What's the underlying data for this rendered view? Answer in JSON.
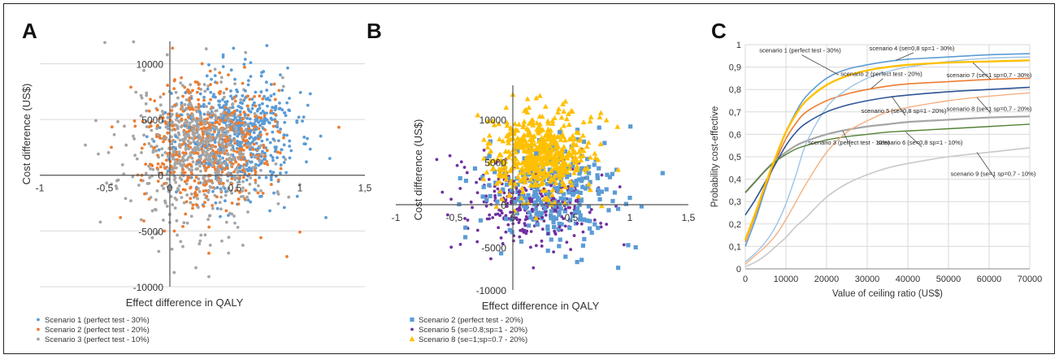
{
  "figure": {
    "panel_letters": [
      "A",
      "B",
      "C"
    ]
  },
  "chart_data": [
    {
      "panel": "A",
      "type": "scatter",
      "xlabel": "Effect difference in QALY",
      "ylabel": "Cost difference (US$)",
      "xlim": [
        -1,
        1.5
      ],
      "ylim": [
        -10000,
        12000
      ],
      "x_ticks": [
        -1,
        -0.5,
        0,
        0.5,
        1,
        1.5
      ],
      "x_tick_labels": [
        "-1",
        "-0,5",
        "0",
        "0,5",
        "1",
        "1,5"
      ],
      "y_ticks": [
        -10000,
        -5000,
        0,
        5000,
        10000
      ],
      "y_tick_labels": [
        "-10000",
        "-5000",
        "0",
        "5000",
        "10000"
      ],
      "grid": true,
      "legend_position": "bottom-left",
      "series": [
        {
          "name": "Scenario 1 (perfect test - 30%)",
          "color": "#5b9bd5",
          "marker": "circle",
          "points": [
            [
              1.23,
              1500
            ],
            [
              1.2,
              -3800
            ],
            [
              1.16,
              3500
            ],
            [
              1.08,
              7300
            ],
            [
              1.05,
              1200
            ],
            [
              0.98,
              -1900
            ],
            [
              0.92,
              5800
            ],
            [
              0.88,
              -2900
            ],
            [
              0.85,
              9000
            ],
            [
              0.8,
              -1600
            ],
            [
              0.75,
              6200
            ],
            [
              0.72,
              9300
            ],
            [
              0.68,
              2400
            ],
            [
              0.62,
              -2400
            ],
            [
              0.58,
              10400
            ],
            [
              0.55,
              4500
            ],
            [
              0.5,
              8600
            ],
            [
              0.45,
              -3600
            ],
            [
              0.41,
              10800
            ],
            [
              0.38,
              6300
            ],
            [
              0.3,
              9900
            ],
            [
              0.22,
              1200
            ],
            [
              0.15,
              4300
            ],
            [
              0.05,
              -1500
            ],
            [
              0.92,
              2600
            ],
            [
              0.78,
              -400
            ],
            [
              0.66,
              4100
            ],
            [
              0.47,
              3000
            ],
            [
              0.32,
              5200
            ],
            [
              0.12,
              7400
            ]
          ]
        },
        {
          "name": "Scenario 2 (perfect test - 20%)",
          "color": "#ed7d31",
          "marker": "circle",
          "points": [
            [
              1.3,
              4300
            ],
            [
              1.0,
              -5100
            ],
            [
              0.9,
              -7300
            ],
            [
              0.7,
              -5600
            ],
            [
              0.3,
              -7000
            ],
            [
              0.02,
              11400
            ],
            [
              -0.38,
              -3800
            ],
            [
              -0.15,
              6800
            ],
            [
              0.6,
              7100
            ],
            [
              -0.2,
              -4100
            ],
            [
              0.84,
              7600
            ],
            [
              -0.45,
              2500
            ],
            [
              0.1,
              -4600
            ],
            [
              0.45,
              9000
            ],
            [
              -0.3,
              7900
            ],
            [
              0.7,
              3600
            ],
            [
              0.2,
              2000
            ],
            [
              0.35,
              4700
            ],
            [
              -0.05,
              3000
            ],
            [
              0.55,
              1400
            ]
          ]
        },
        {
          "name": "Scenario 3 (perfect test - 10%)",
          "color": "#a5a5a5",
          "marker": "circle",
          "points": [
            [
              -0.65,
              2700
            ],
            [
              -0.55,
              1900
            ],
            [
              -0.5,
              11900
            ],
            [
              -0.45,
              -800
            ],
            [
              -0.4,
              4800
            ],
            [
              -0.3,
              -2300
            ],
            [
              -0.2,
              9400
            ],
            [
              -0.1,
              -5200
            ],
            [
              0.0,
              -3500
            ],
            [
              0.1,
              -6400
            ],
            [
              0.2,
              -8300
            ],
            [
              0.3,
              -9100
            ],
            [
              0.4,
              -5900
            ],
            [
              0.5,
              -4300
            ],
            [
              0.6,
              -3300
            ],
            [
              0.7,
              -1400
            ],
            [
              0.2,
              6100
            ],
            [
              0.1,
              3200
            ],
            [
              0.3,
              1800
            ],
            [
              0.4,
              4100
            ],
            [
              -0.1,
              2600
            ],
            [
              0.0,
              600
            ],
            [
              0.25,
              2900
            ],
            [
              -0.35,
              4400
            ]
          ]
        }
      ]
    },
    {
      "panel": "B",
      "type": "scatter",
      "xlabel": "Effect difference in QALY",
      "ylabel": "Cost difference (US$)",
      "xlim": [
        -1,
        1.5
      ],
      "ylim": [
        -10000,
        14000
      ],
      "x_ticks": [
        -1,
        -0.5,
        0,
        0.5,
        1,
        1.5
      ],
      "x_tick_labels": [
        "-1",
        "-0,5",
        "0",
        "0,5",
        "1",
        "1,5"
      ],
      "y_ticks": [
        -10000,
        -5000,
        0,
        5000,
        10000
      ],
      "y_tick_labels": [
        "-10000",
        "-5000",
        "0",
        "5000",
        "10000"
      ],
      "grid": false,
      "legend_position": "bottom-left",
      "series": [
        {
          "name": "Scenario 2 (perfect test - 20%)",
          "color": "#5b9bd5",
          "marker": "square",
          "points": [
            [
              1.28,
              3700
            ],
            [
              1.1,
              -200
            ],
            [
              1.05,
              -5000
            ],
            [
              1.0,
              800
            ],
            [
              0.9,
              -7400
            ],
            [
              0.85,
              3600
            ],
            [
              0.7,
              -2300
            ],
            [
              0.6,
              -4800
            ],
            [
              0.45,
              -6100
            ],
            [
              0.3,
              -5400
            ],
            [
              -0.1,
              -5700
            ],
            [
              -0.45,
              3100
            ],
            [
              -0.4,
              2800
            ],
            [
              0.2,
              6000
            ],
            [
              0.55,
              1500
            ],
            [
              0.8,
              1800
            ],
            [
              0.15,
              -1500
            ],
            [
              -0.2,
              5700
            ],
            [
              0.4,
              8500
            ],
            [
              0.65,
              3700
            ]
          ]
        },
        {
          "name": "Scenario 5 (se=0.8;sp=1 - 20%)",
          "color": "#7030a0",
          "marker": "circle",
          "points": [
            [
              -0.65,
              5300
            ],
            [
              -0.45,
              1900
            ],
            [
              -0.3,
              -3000
            ],
            [
              -0.2,
              -1200
            ],
            [
              -0.1,
              -3900
            ],
            [
              0.0,
              -900
            ],
            [
              0.1,
              -2200
            ],
            [
              0.2,
              -4800
            ],
            [
              0.3,
              -3400
            ],
            [
              0.4,
              -2600
            ],
            [
              0.5,
              -1000
            ],
            [
              0.6,
              -3200
            ],
            [
              0.7,
              -1800
            ],
            [
              0.8,
              -2300
            ],
            [
              0.95,
              -4700
            ],
            [
              0.05,
              1500
            ],
            [
              -0.05,
              -200
            ],
            [
              0.15,
              400
            ],
            [
              0.25,
              -1500
            ],
            [
              0.35,
              700
            ],
            [
              0.45,
              -500
            ],
            [
              0.55,
              -2200
            ],
            [
              0.12,
              -3100
            ],
            [
              -0.15,
              800
            ]
          ]
        },
        {
          "name": "Scenario 8 (se=1;sp=0.7 - 20%)",
          "color": "#ffc000",
          "marker": "triangle",
          "points": [
            [
              0.0,
              12900
            ],
            [
              -0.3,
              10500
            ],
            [
              0.2,
              12500
            ],
            [
              0.45,
              12100
            ],
            [
              0.5,
              11000
            ],
            [
              0.8,
              9900
            ],
            [
              0.9,
              4100
            ],
            [
              -0.2,
              8100
            ],
            [
              0.1,
              11000
            ],
            [
              0.3,
              9800
            ],
            [
              0.6,
              8100
            ],
            [
              0.7,
              6000
            ],
            [
              -0.1,
              5200
            ],
            [
              0.05,
              6700
            ],
            [
              0.15,
              4300
            ],
            [
              0.25,
              7200
            ],
            [
              0.35,
              5600
            ],
            [
              0.4,
              3100
            ],
            [
              0.55,
              4500
            ],
            [
              0.65,
              2400
            ],
            [
              -0.25,
              3000
            ],
            [
              0.12,
              8900
            ],
            [
              0.28,
              11500
            ],
            [
              -0.05,
              9600
            ],
            [
              0.75,
              7100
            ]
          ]
        }
      ]
    },
    {
      "panel": "C",
      "type": "line",
      "xlabel": "Value of ceiling ratio (US$)",
      "ylabel": "Probability cost-effective",
      "xlim": [
        0,
        70000
      ],
      "ylim": [
        0,
        1
      ],
      "x_ticks": [
        0,
        10000,
        20000,
        30000,
        40000,
        50000,
        60000,
        70000
      ],
      "x_tick_labels": [
        "0",
        "10000",
        "20000",
        "30000",
        "40000",
        "50000",
        "60000",
        "70000"
      ],
      "y_ticks": [
        0,
        0.1,
        0.2,
        0.3,
        0.4,
        0.5,
        0.6,
        0.7,
        0.8,
        0.9,
        1
      ],
      "y_tick_labels": [
        "0",
        "0,1",
        "0,2",
        "0,3",
        "0,4",
        "0,5",
        "0,6",
        "0,7",
        "0,8",
        "0,9",
        "1"
      ],
      "grid": true,
      "x": [
        0,
        2500,
        5000,
        7500,
        10000,
        12500,
        15000,
        20000,
        25000,
        30000,
        35000,
        40000,
        50000,
        60000,
        70000
      ],
      "series": [
        {
          "name": "scenario 1 (perfect test - 30%)",
          "color": "#5b9bd5",
          "width": 1.6,
          "values": [
            0.1,
            0.22,
            0.36,
            0.49,
            0.61,
            0.7,
            0.77,
            0.85,
            0.89,
            0.91,
            0.925,
            0.935,
            0.945,
            0.955,
            0.96
          ]
        },
        {
          "name": "scenario 2 (perfect test - 20%)",
          "color": "#ed7d31",
          "width": 1.6,
          "values": [
            0.12,
            0.24,
            0.37,
            0.48,
            0.58,
            0.65,
            0.7,
            0.75,
            0.78,
            0.8,
            0.815,
            0.825,
            0.835,
            0.845,
            0.85
          ]
        },
        {
          "name": "scenario 3 (perfect test - 10%)",
          "color": "#a5a5a5",
          "width": 2.2,
          "values": [
            0.34,
            0.39,
            0.44,
            0.485,
            0.52,
            0.55,
            0.57,
            0.6,
            0.62,
            0.635,
            0.645,
            0.655,
            0.665,
            0.675,
            0.68
          ]
        },
        {
          "name": "scenario 4 (se=0,8 sp=1 - 30%)",
          "color": "#9dc3e6",
          "width": 1.4,
          "values": [
            0.03,
            0.07,
            0.12,
            0.19,
            0.29,
            0.42,
            0.56,
            0.72,
            0.8,
            0.85,
            0.88,
            0.9,
            0.925,
            0.94,
            0.945
          ]
        },
        {
          "name": "scenario 5 (se=0,8 sp=1 - 20%)",
          "color": "#2f5597",
          "width": 1.6,
          "values": [
            0.24,
            0.31,
            0.39,
            0.47,
            0.55,
            0.61,
            0.65,
            0.7,
            0.73,
            0.75,
            0.765,
            0.775,
            0.79,
            0.8,
            0.81
          ]
        },
        {
          "name": "scenario 6 (se=0,8 sp=1 - 10%)",
          "color": "#548235",
          "width": 1.4,
          "values": [
            0.34,
            0.39,
            0.44,
            0.48,
            0.51,
            0.535,
            0.55,
            0.575,
            0.59,
            0.6,
            0.61,
            0.615,
            0.625,
            0.635,
            0.645
          ]
        },
        {
          "name": "scenario 7 (se=1 sp=0,7 - 30%)",
          "color": "#ffc000",
          "width": 2.4,
          "values": [
            0.13,
            0.25,
            0.38,
            0.5,
            0.61,
            0.69,
            0.75,
            0.82,
            0.86,
            0.885,
            0.9,
            0.91,
            0.92,
            0.925,
            0.93
          ]
        },
        {
          "name": "scenario 8 (se=1 sp=0,7 - 20%)",
          "color": "#f4b183",
          "width": 1.4,
          "values": [
            0.02,
            0.06,
            0.1,
            0.15,
            0.22,
            0.3,
            0.38,
            0.52,
            0.61,
            0.66,
            0.7,
            0.72,
            0.75,
            0.77,
            0.785
          ]
        },
        {
          "name": "scenario 9 (se=1 sp=0,7 - 10%)",
          "color": "#c9c9c9",
          "width": 1.6,
          "values": [
            0.01,
            0.03,
            0.06,
            0.1,
            0.14,
            0.19,
            0.23,
            0.32,
            0.38,
            0.42,
            0.45,
            0.47,
            0.5,
            0.52,
            0.54
          ]
        }
      ],
      "annotations": [
        {
          "text": "scenario 1 (perfect test - 30%)",
          "x": 13500,
          "y": 0.965,
          "ax": 23000,
          "ay": 0.865
        },
        {
          "text": "scenario 4 (se=0,8 sp=1 - 30%)",
          "x": 41000,
          "y": 0.975,
          "ax": 37000,
          "ay": 0.93
        },
        {
          "text": "scenario 2 (perfect test - 20%)",
          "x": 33500,
          "y": 0.86,
          "ax": 31000,
          "ay": 0.805
        },
        {
          "text": "scenario 7 (se=1 sp=0,7 - 30%)",
          "x": 60000,
          "y": 0.855,
          "ax": 56000,
          "ay": 0.92
        },
        {
          "text": "scenario 5 (se=0,8 sp=1 - 20%)",
          "x": 39000,
          "y": 0.695,
          "ax": 36000,
          "ay": 0.77
        },
        {
          "text": "scenario 8 (se=1 sp=0,7 - 20%)",
          "x": 60000,
          "y": 0.705,
          "ax": 57000,
          "ay": 0.765
        },
        {
          "text": "scenario 3 (perfect test - 10%)",
          "x": 25500,
          "y": 0.555,
          "ax": 24000,
          "ay": 0.615
        },
        {
          "text": "scenario 6 (se=0,8 sp=1 - 10%)",
          "x": 43000,
          "y": 0.555,
          "ax": 39500,
          "ay": 0.61
        },
        {
          "text": "scenario 9 (se=1 sp=0,7 - 10%)",
          "x": 61000,
          "y": 0.415,
          "ax": 57000,
          "ay": 0.52
        }
      ]
    }
  ]
}
